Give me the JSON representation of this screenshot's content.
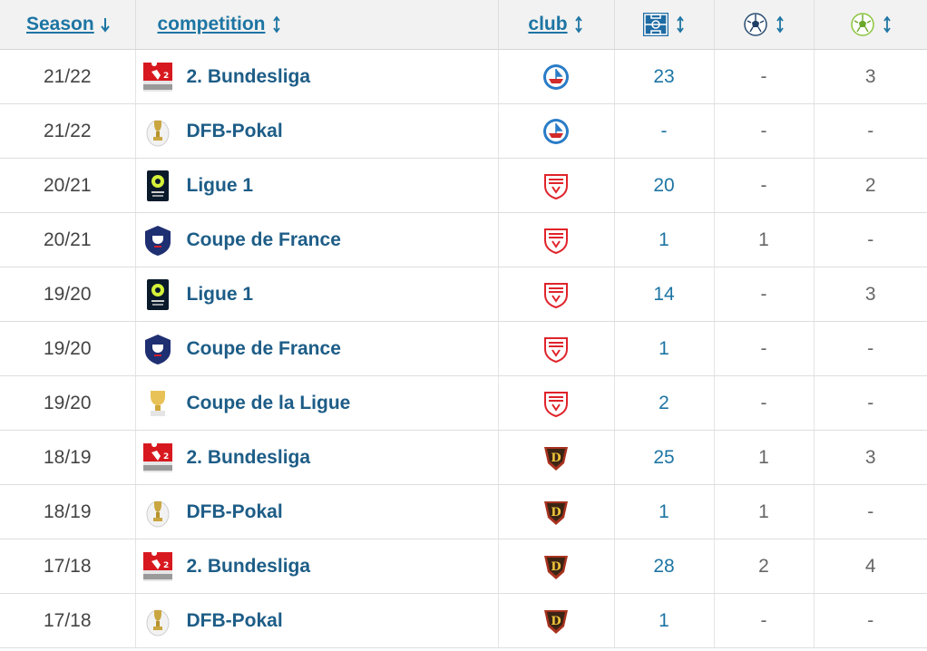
{
  "header": {
    "season": "Season",
    "competition": "competition",
    "club": "club",
    "apps_icon": "pitch-icon",
    "goals_icon": "ball-icon",
    "assists_icon": "assist-ball-icon"
  },
  "rows": [
    {
      "season": "21/22",
      "competition": "2. Bundesliga",
      "comp_icon": "bundesliga2-logo",
      "club_icon": "hansa-rostock-crest",
      "apps": "23",
      "goals": "-",
      "assists": "3"
    },
    {
      "season": "21/22",
      "competition": "DFB-Pokal",
      "comp_icon": "dfb-pokal-logo",
      "club_icon": "hansa-rostock-crest",
      "apps": "-",
      "goals": "-",
      "assists": "-"
    },
    {
      "season": "20/21",
      "competition": "Ligue 1",
      "comp_icon": "ligue1-logo",
      "club_icon": "nimes-crest",
      "apps": "20",
      "goals": "-",
      "assists": "2"
    },
    {
      "season": "20/21",
      "competition": "Coupe de France",
      "comp_icon": "coupe-de-france-logo",
      "club_icon": "nimes-crest",
      "apps": "1",
      "goals": "1",
      "assists": "-"
    },
    {
      "season": "19/20",
      "competition": "Ligue 1",
      "comp_icon": "ligue1-logo",
      "club_icon": "nimes-crest",
      "apps": "14",
      "goals": "-",
      "assists": "3"
    },
    {
      "season": "19/20",
      "competition": "Coupe de France",
      "comp_icon": "coupe-de-france-logo",
      "club_icon": "nimes-crest",
      "apps": "1",
      "goals": "-",
      "assists": "-"
    },
    {
      "season": "19/20",
      "competition": "Coupe de la Ligue",
      "comp_icon": "coupe-de-la-ligue-logo",
      "club_icon": "nimes-crest",
      "apps": "2",
      "goals": "-",
      "assists": "-"
    },
    {
      "season": "18/19",
      "competition": "2. Bundesliga",
      "comp_icon": "bundesliga2-logo",
      "club_icon": "dynamo-dresden-crest",
      "apps": "25",
      "goals": "1",
      "assists": "3"
    },
    {
      "season": "18/19",
      "competition": "DFB-Pokal",
      "comp_icon": "dfb-pokal-logo",
      "club_icon": "dynamo-dresden-crest",
      "apps": "1",
      "goals": "1",
      "assists": "-"
    },
    {
      "season": "17/18",
      "competition": "2. Bundesliga",
      "comp_icon": "bundesliga2-logo",
      "club_icon": "dynamo-dresden-crest",
      "apps": "28",
      "goals": "2",
      "assists": "4"
    },
    {
      "season": "17/18",
      "competition": "DFB-Pokal",
      "comp_icon": "dfb-pokal-logo",
      "club_icon": "dynamo-dresden-crest",
      "apps": "1",
      "goals": "-",
      "assists": "-"
    }
  ],
  "colors": {
    "link": "#1d75a3",
    "comp_name": "#1d5d87",
    "header_bg": "#f2f2f2"
  }
}
